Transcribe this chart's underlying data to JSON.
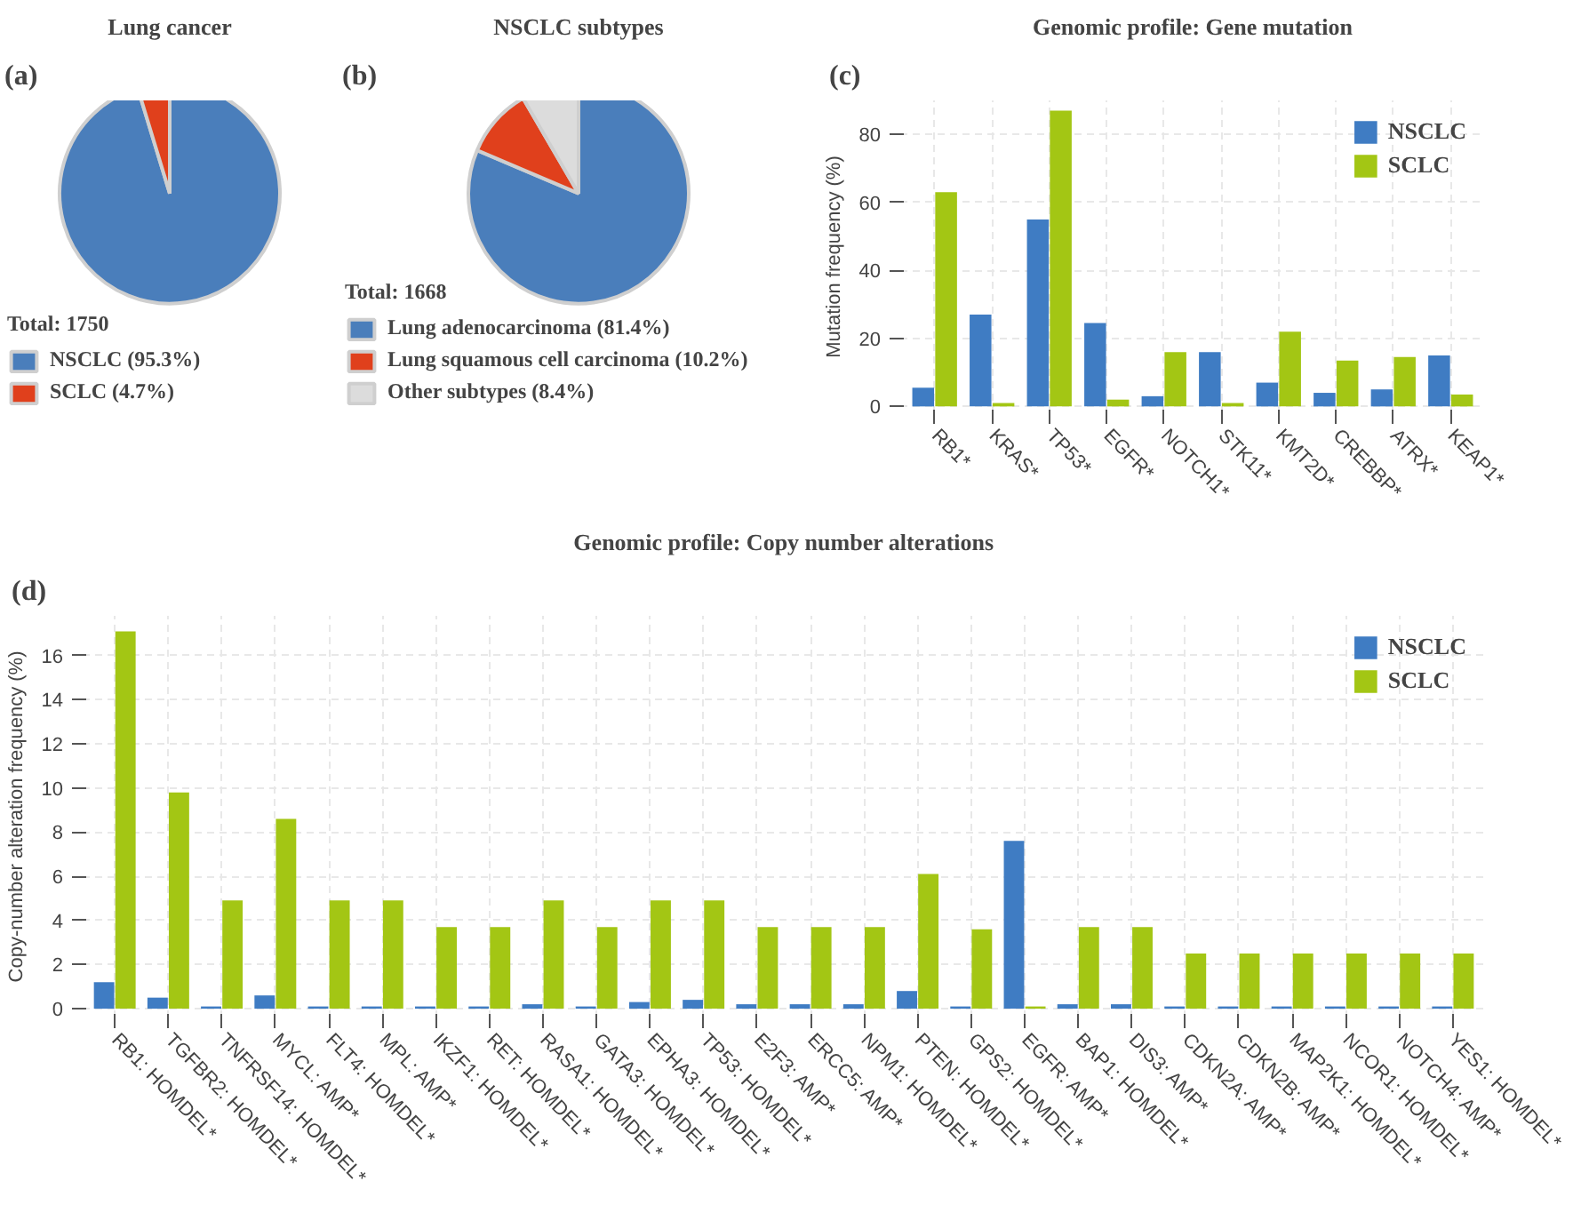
{
  "chart_data": [
    {
      "type": "pie",
      "title": "Lung cancer",
      "annotations": [
        "(a)"
      ],
      "legend_title": "Total: 1750",
      "legend": "bottom",
      "categories": [
        "NSCLC (95.3%)",
        "SCLC (4.7%)"
      ],
      "values": [
        95.3,
        4.7
      ],
      "colors": [
        "#4a7ebb",
        "#e0401c"
      ]
    },
    {
      "type": "pie",
      "title": "NSCLC subtypes",
      "annotations": [
        "(b)"
      ],
      "legend_title": "Total: 1668",
      "legend": "bottom",
      "categories": [
        "Lung adenocarcinoma (81.4%)",
        "Lung squamous cell carcinoma (10.2%)",
        "Other subtypes (8.4%)"
      ],
      "values": [
        81.4,
        10.2,
        8.4
      ],
      "colors": [
        "#4a7ebb",
        "#e0401c",
        "#dcdcdc"
      ]
    },
    {
      "type": "bar",
      "title": "Genomic profile: Gene mutation",
      "annotations": [
        "(c)"
      ],
      "ylabel": "Mutation frequency (%)",
      "legend": "top right",
      "grid": true,
      "categories": [
        "RB1*",
        "KRAS*",
        "TP53*",
        "EGFR*",
        "NOTCH1*",
        "STK11*",
        "KMT2D*",
        "CREBBP*",
        "ATRX*",
        "KEAP1*"
      ],
      "ylim": [
        -2,
        90
      ],
      "yticks": [
        0,
        20,
        40,
        60,
        80
      ],
      "series": [
        {
          "name": "NSCLC",
          "color": "#3f7cc3",
          "values": [
            5.5,
            27,
            55,
            24.5,
            3,
            16,
            7,
            4,
            5,
            15
          ]
        },
        {
          "name": "SCLC",
          "color": "#a3c614",
          "values": [
            63,
            1,
            87,
            2,
            16,
            1,
            22,
            13.5,
            14.5,
            3.5
          ]
        }
      ]
    },
    {
      "type": "bar",
      "title": "Genomic profile: Copy number alterations",
      "annotations": [
        "(d)"
      ],
      "ylabel": "Copy-number alteration frequency (%)",
      "legend": "top right",
      "grid": true,
      "categories": [
        "RB1: HOMDEL*",
        "TGFBR2: HOMDEL*",
        "TNFRSF14: HOMDEL*",
        "MYCL: AMP*",
        "FLT4: HOMDEL*",
        "MPL: AMP*",
        "IKZF1: HOMDEL*",
        "RET: HOMDEL*",
        "RASA1: HOMDEL*",
        "GATA3: HOMDEL*",
        "EPHA3: HOMDEL*",
        "TP53: HOMDEL*",
        "E2F3: AMP*",
        "ERCC5: AMP*",
        "NPM1: HOMDEL*",
        "PTEN: HOMDEL*",
        "GPS2: HOMDEL*",
        "EGFR: AMP*",
        "BAP1: HOMDEL*",
        "DIS3: AMP*",
        "CDKN2A: AMP*",
        "CDKN2B: AMP*",
        "MAP2K1: HOMDEL*",
        "NCOR1: HOMDEL*",
        "NOTCH4: AMP*",
        "YES1: HOMDEL*"
      ],
      "ylim": [
        -0.4,
        17.8
      ],
      "yticks": [
        0,
        2,
        4,
        6,
        8,
        10,
        12,
        14,
        16
      ],
      "series": [
        {
          "name": "NSCLC",
          "color": "#3f7cc3",
          "values": [
            1.2,
            0.5,
            0.1,
            0.6,
            0.1,
            0.1,
            0.1,
            0.1,
            0.2,
            0.1,
            0.3,
            0.4,
            0.2,
            0.2,
            0.2,
            0.8,
            0.1,
            7.6,
            0.2,
            0.2,
            0.1,
            0.1,
            0.1,
            0.1,
            0.1,
            0.1
          ]
        },
        {
          "name": "SCLC",
          "color": "#a3c614",
          "values": [
            17.1,
            9.8,
            4.9,
            8.6,
            4.9,
            4.9,
            3.7,
            3.7,
            4.9,
            3.7,
            4.9,
            4.9,
            3.7,
            3.7,
            3.7,
            6.1,
            3.6,
            0.1,
            3.7,
            3.7,
            2.5,
            2.5,
            2.5,
            2.5,
            2.5,
            2.5
          ]
        }
      ]
    }
  ]
}
